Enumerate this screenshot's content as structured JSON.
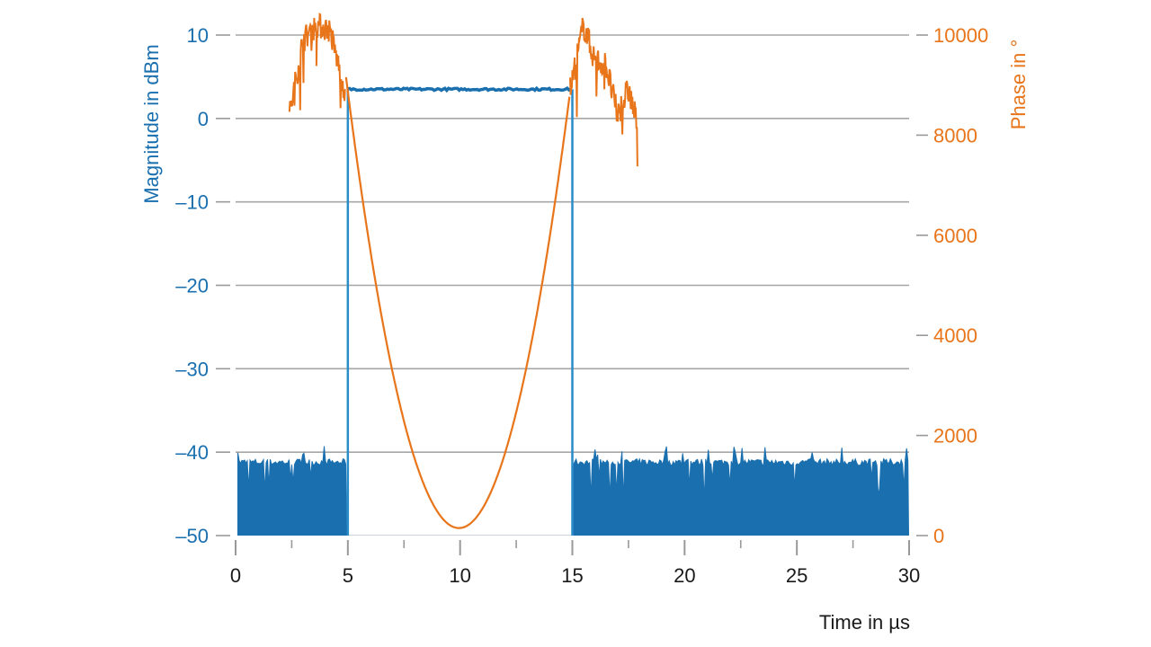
{
  "chart_data": {
    "type": "line",
    "title": "",
    "xlabel": "Time in µs",
    "ylabel": "Magnitude in dBm",
    "y2label": "Phase in °",
    "xlim": [
      0,
      30
    ],
    "ylim": [
      -50,
      10
    ],
    "y2lim": [
      0,
      10000
    ],
    "xticks": [
      0,
      5,
      10,
      15,
      20,
      25,
      30
    ],
    "xtick_labels": [
      "0",
      "5",
      "10",
      "15",
      "20",
      "25",
      "30"
    ],
    "yticks": [
      -50,
      -40,
      -30,
      -20,
      -10,
      0,
      10
    ],
    "ytick_labels": [
      "–50",
      "–40",
      "–30",
      "–20",
      "–10",
      "0",
      "10"
    ],
    "y2ticks": [
      0,
      2000,
      4000,
      6000,
      8000,
      10000
    ],
    "y2tick_labels": [
      "0",
      "2000",
      "4000",
      "6000",
      "8000",
      "10000"
    ],
    "grid": true,
    "colors": {
      "magnitude": "#1a6faf",
      "phase": "#e8751a",
      "grid": "#a6a6a6",
      "axis": "#999999"
    },
    "series": [
      {
        "axis": "left",
        "color": "#1a6faf",
        "style": "noise floor (filled) with rectangular pulse",
        "noise_floor_top": -41,
        "noise_floor_bottom": -50,
        "pulse_start": 5,
        "pulse_end": 15,
        "pulse_level": 3.5,
        "x": [
          0.1,
          4.9,
          4.9,
          5.0,
          14.9,
          15.0,
          15.0,
          30.0
        ],
        "values": [
          -41,
          -41,
          -50,
          3.5,
          3.5,
          -50,
          -41,
          -41
        ]
      },
      {
        "axis": "right",
        "color": "#e8751a",
        "style": "parabolic phase during pulse, noisy outside",
        "x": [
          2.4,
          3.0,
          3.6,
          4.2,
          4.9,
          6.0,
          7.0,
          8.0,
          9.0,
          10.0,
          11.0,
          12.0,
          13.0,
          14.0,
          14.9,
          15.5,
          16.0,
          16.5,
          17.0,
          17.5,
          17.9
        ],
        "values": [
          8400,
          9900,
          10200,
          10100,
          8800,
          6620,
          4280,
          2420,
          1040,
          150,
          520,
          1480,
          3040,
          5180,
          8900,
          10200,
          9500,
          9400,
          8400,
          8900,
          8200
        ]
      }
    ]
  }
}
